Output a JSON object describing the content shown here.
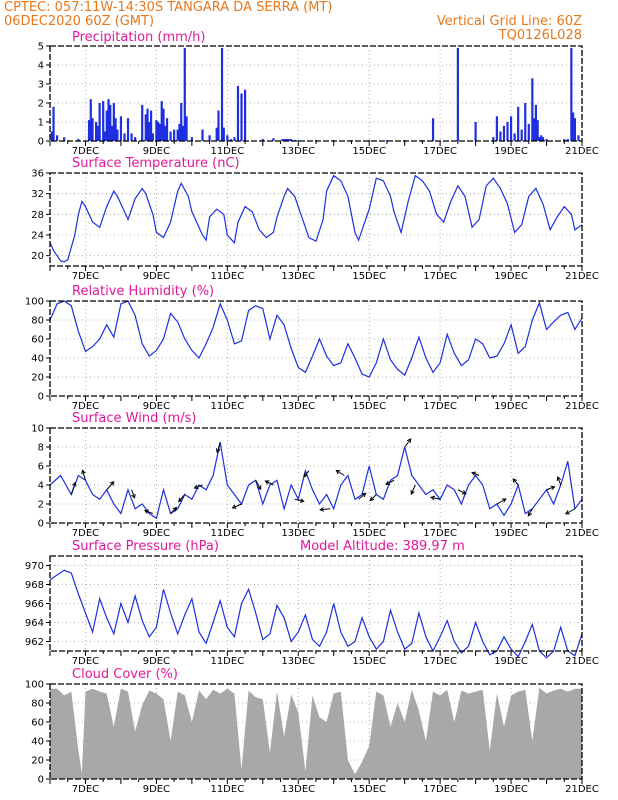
{
  "header": {
    "line1_left": "CPTEC:   057:11W-14:30S   TANGARA DA SERRA (MT)",
    "line2_left": "06DEC2020 60Z (GMT)",
    "line2_right": "Vertical Grid Line: 60Z",
    "line3_right": "TQ0126L028"
  },
  "colors": {
    "header": "#e8781a",
    "title": "#e0189a",
    "series": "#1d2fe0",
    "cloud": "#a8a8a8",
    "arrow": "#000000",
    "grid": "#9a9a9a"
  },
  "chart_data": [
    {
      "type": "bar",
      "title": "Precipitation (mm/h)",
      "ylim": [
        0,
        5
      ],
      "yticks": [
        "0",
        "1",
        "2",
        "3",
        "4",
        "5"
      ],
      "xlim": [
        0,
        15
      ],
      "xtick_positions": [
        1,
        3,
        5,
        7,
        9,
        11,
        13,
        15
      ],
      "xtick_labels": [
        "7DEC",
        "9DEC",
        "11DEC",
        "13DEC",
        "15DEC",
        "17DEC",
        "19DEC",
        "21DEC"
      ],
      "grid": "dotted",
      "x": [
        0.05,
        0.1,
        0.2,
        0.4,
        0.8,
        1.1,
        1.15,
        1.2,
        1.3,
        1.35,
        1.4,
        1.5,
        1.55,
        1.6,
        1.65,
        1.7,
        1.75,
        1.8,
        1.85,
        1.9,
        2.0,
        2.1,
        2.2,
        2.3,
        2.4,
        2.6,
        2.7,
        2.75,
        2.8,
        2.85,
        2.9,
        3.0,
        3.05,
        3.1,
        3.15,
        3.2,
        3.25,
        3.3,
        3.4,
        3.5,
        3.6,
        3.65,
        3.7,
        3.75,
        3.8,
        3.85,
        4.0,
        4.3,
        4.5,
        4.7,
        4.75,
        4.85,
        4.9,
        5.0,
        5.1,
        5.2,
        5.3,
        5.4,
        5.5,
        6.0,
        6.3,
        6.55,
        6.6,
        6.65,
        6.7,
        6.75,
        6.8,
        6.9,
        7.0,
        7.5,
        8.0,
        8.5,
        9.0,
        9.5,
        10.0,
        10.5,
        10.8,
        11.5,
        12.0,
        12.5,
        12.6,
        12.7,
        12.8,
        12.9,
        13.0,
        13.1,
        13.2,
        13.3,
        13.4,
        13.5,
        13.6,
        13.65,
        13.7,
        13.75,
        13.8,
        13.85,
        13.9,
        14.0,
        14.5,
        14.6,
        14.7,
        14.75,
        14.8,
        14.9
      ],
      "values": [
        0.5,
        1.8,
        0.3,
        0.2,
        0.1,
        1.1,
        2.2,
        1.2,
        1.0,
        0.8,
        2.0,
        2.1,
        0.5,
        1.6,
        2.2,
        1.9,
        0.8,
        2.0,
        1.2,
        0.6,
        1.3,
        0.4,
        1.2,
        0.4,
        0.2,
        1.9,
        1.4,
        1.7,
        1.0,
        1.6,
        0.4,
        1.1,
        1.0,
        0.9,
        2.1,
        1.7,
        0.8,
        1.2,
        0.5,
        0.6,
        0.6,
        0.9,
        2.0,
        0.8,
        4.9,
        1.3,
        0.2,
        0.6,
        0.3,
        0.7,
        1.6,
        4.9,
        0.7,
        0.3,
        0.1,
        0.2,
        2.9,
        2.5,
        2.7,
        0.1,
        0.15,
        0.1,
        0.1,
        0.1,
        0.1,
        0.1,
        0.1,
        0.05,
        0.05,
        0.05,
        0.05,
        0.05,
        0.05,
        0.05,
        0.05,
        0.05,
        1.2,
        4.9,
        1.0,
        0.2,
        1.3,
        0.5,
        0.8,
        1.0,
        1.3,
        0.4,
        1.8,
        0.6,
        2.0,
        0.9,
        3.3,
        1.2,
        1.9,
        1.1,
        0.2,
        0.3,
        0.2,
        0.1,
        0.1,
        0.1,
        4.9,
        1.5,
        1.2,
        0.3
      ]
    },
    {
      "type": "line",
      "title": "Surface Temperature (nC)",
      "ylim": [
        18,
        36
      ],
      "yticks": [
        "20",
        "24",
        "28",
        "32",
        "36"
      ],
      "ytick_values": [
        20,
        24,
        28,
        32,
        36
      ],
      "xlim": [
        0,
        15
      ],
      "xtick_positions": [
        1,
        3,
        5,
        7,
        9,
        11,
        13,
        15
      ],
      "xtick_labels": [
        "7DEC",
        "9DEC",
        "11DEC",
        "13DEC",
        "15DEC",
        "17DEC",
        "19DEC",
        "21DEC"
      ],
      "grid": "dotted",
      "x": [
        0,
        0.1,
        0.2,
        0.3,
        0.4,
        0.5,
        0.7,
        0.8,
        0.9,
        1.0,
        1.2,
        1.4,
        1.6,
        1.8,
        1.9,
        2.1,
        2.2,
        2.4,
        2.6,
        2.7,
        2.8,
        2.9,
        3.0,
        3.2,
        3.4,
        3.6,
        3.7,
        3.9,
        4.0,
        4.3,
        4.4,
        4.5,
        4.7,
        4.9,
        5.0,
        5.2,
        5.3,
        5.5,
        5.7,
        5.9,
        6.1,
        6.3,
        6.4,
        6.6,
        6.7,
        6.9,
        7.1,
        7.3,
        7.5,
        7.7,
        7.8,
        8.0,
        8.2,
        8.4,
        8.6,
        8.7,
        9.0,
        9.2,
        9.4,
        9.6,
        9.7,
        9.9,
        10.1,
        10.3,
        10.5,
        10.7,
        10.9,
        11.1,
        11.3,
        11.5,
        11.7,
        11.9,
        12.1,
        12.3,
        12.5,
        12.7,
        12.9,
        13.1,
        13.3,
        13.5,
        13.7,
        13.9,
        14.1,
        14.3,
        14.5,
        14.7,
        14.8,
        15.0
      ],
      "values": [
        22.5,
        21.0,
        20.0,
        19.0,
        18.8,
        19.2,
        24.0,
        28.0,
        30.5,
        29.5,
        26.5,
        25.5,
        29.5,
        32.5,
        31.5,
        28.5,
        27.0,
        31.0,
        33.0,
        32.0,
        30.0,
        28.0,
        24.5,
        23.5,
        26.5,
        32.5,
        34.0,
        31.5,
        28.5,
        24.0,
        23.0,
        27.5,
        29.0,
        28.0,
        24.0,
        22.5,
        26.5,
        29.5,
        28.5,
        25.0,
        23.5,
        24.5,
        27.5,
        31.5,
        33.0,
        31.5,
        27.5,
        23.5,
        22.8,
        27.0,
        32.5,
        35.5,
        34.5,
        31.5,
        24.5,
        23.0,
        29.0,
        35.0,
        34.5,
        31.5,
        28.5,
        24.5,
        30.5,
        35.5,
        34.5,
        32.5,
        28.0,
        26.5,
        30.5,
        33.5,
        31.5,
        25.5,
        27.0,
        33.5,
        35.0,
        33.0,
        30.0,
        24.5,
        26.0,
        31.5,
        33.0,
        30.0,
        25.0,
        27.5,
        29.5,
        28.0,
        25.0,
        26.0
      ]
    },
    {
      "type": "line",
      "title": "Relative Humidity (%)",
      "ylim": [
        0,
        100
      ],
      "yticks": [
        "0",
        "20",
        "40",
        "60",
        "80",
        "100"
      ],
      "xlim": [
        0,
        15
      ],
      "xtick_positions": [
        1,
        3,
        5,
        7,
        9,
        11,
        13,
        15
      ],
      "xtick_labels": [
        "7DEC",
        "9DEC",
        "11DEC",
        "13DEC",
        "15DEC",
        "17DEC",
        "19DEC",
        "21DEC"
      ],
      "grid": "dotted",
      "x": [
        0,
        0.2,
        0.4,
        0.6,
        0.8,
        1.0,
        1.2,
        1.4,
        1.6,
        1.8,
        2.0,
        2.2,
        2.4,
        2.6,
        2.8,
        3.0,
        3.2,
        3.4,
        3.6,
        3.8,
        4.0,
        4.2,
        4.4,
        4.6,
        4.8,
        5.0,
        5.2,
        5.4,
        5.6,
        5.8,
        6.0,
        6.2,
        6.4,
        6.6,
        6.8,
        7.0,
        7.2,
        7.4,
        7.6,
        7.8,
        8.0,
        8.2,
        8.4,
        8.6,
        8.8,
        9.0,
        9.2,
        9.4,
        9.6,
        9.8,
        10.0,
        10.2,
        10.4,
        10.6,
        10.8,
        11.0,
        11.2,
        11.4,
        11.6,
        11.8,
        12.0,
        12.2,
        12.4,
        12.6,
        12.8,
        13.0,
        13.2,
        13.4,
        13.6,
        13.8,
        14.0,
        14.2,
        14.4,
        14.6,
        14.8,
        15.0
      ],
      "values": [
        80,
        97,
        100,
        95,
        68,
        47,
        52,
        60,
        75,
        62,
        97,
        100,
        85,
        55,
        42,
        48,
        60,
        87,
        78,
        60,
        48,
        40,
        55,
        72,
        97,
        80,
        55,
        58,
        90,
        95,
        92,
        60,
        85,
        75,
        50,
        30,
        25,
        42,
        60,
        42,
        32,
        35,
        55,
        40,
        23,
        20,
        35,
        60,
        38,
        28,
        22,
        40,
        62,
        40,
        25,
        35,
        65,
        45,
        32,
        38,
        60,
        55,
        40,
        42,
        55,
        75,
        45,
        52,
        80,
        98,
        70,
        78,
        85,
        88,
        70,
        82
      ]
    },
    {
      "type": "line",
      "title": "Surface Wind (m/s)",
      "ylim": [
        0,
        10
      ],
      "yticks": [
        "0",
        "2",
        "4",
        "6",
        "8",
        "10"
      ],
      "xlim": [
        0,
        15
      ],
      "xtick_positions": [
        1,
        3,
        5,
        7,
        9,
        11,
        13,
        15
      ],
      "xtick_labels": [
        "7DEC",
        "9DEC",
        "11DEC",
        "13DEC",
        "15DEC",
        "17DEC",
        "19DEC",
        "21DEC"
      ],
      "grid": "dotted",
      "x": [
        0,
        0.3,
        0.6,
        0.8,
        1.0,
        1.2,
        1.4,
        1.6,
        1.8,
        2.0,
        2.2,
        2.4,
        2.6,
        2.8,
        3.0,
        3.2,
        3.4,
        3.6,
        3.8,
        4.0,
        4.2,
        4.4,
        4.6,
        4.8,
        5.0,
        5.2,
        5.4,
        5.6,
        5.8,
        6.0,
        6.2,
        6.4,
        6.6,
        6.8,
        7.0,
        7.2,
        7.4,
        7.6,
        7.8,
        8.0,
        8.2,
        8.4,
        8.6,
        8.8,
        9.0,
        9.2,
        9.4,
        9.6,
        9.8,
        10.0,
        10.2,
        10.4,
        10.6,
        10.8,
        11.0,
        11.2,
        11.4,
        11.6,
        11.8,
        12.0,
        12.2,
        12.4,
        12.6,
        12.8,
        13.0,
        13.2,
        13.4,
        13.6,
        13.8,
        14.0,
        14.2,
        14.4,
        14.6,
        14.8,
        15.0
      ],
      "values": [
        4,
        5,
        3,
        5,
        4.5,
        3,
        2.5,
        3.5,
        2,
        1,
        3.5,
        1.5,
        2,
        1,
        0.5,
        3.5,
        1,
        1.5,
        3,
        2.5,
        4,
        3.5,
        5,
        8.5,
        4,
        3,
        2,
        4,
        4.5,
        2,
        4,
        4.5,
        1.5,
        4,
        2.5,
        5.5,
        3.5,
        2,
        3,
        1.5,
        4,
        5,
        2.5,
        3,
        6,
        3,
        2.5,
        4.5,
        5,
        8,
        5,
        4,
        3,
        3.5,
        2.5,
        4,
        3.5,
        2,
        4,
        5,
        4,
        1.5,
        2,
        0.8,
        2,
        4,
        1,
        1.5,
        2.5,
        3.5,
        2,
        4,
        6.5,
        1.5,
        2.5
      ],
      "arrows": [
        {
          "x": 0.6,
          "dx": 4,
          "dy": -12
        },
        {
          "x": 1.0,
          "dx": -3,
          "dy": -10
        },
        {
          "x": 1.6,
          "dx": 7,
          "dy": -8
        },
        {
          "x": 2.3,
          "dx": 3,
          "dy": 8
        },
        {
          "x": 2.9,
          "dx": -8,
          "dy": -3
        },
        {
          "x": 3.4,
          "dx": 6,
          "dy": -6
        },
        {
          "x": 3.8,
          "dx": -6,
          "dy": 7
        },
        {
          "x": 4.3,
          "dx": -8,
          "dy": 3
        },
        {
          "x": 4.8,
          "dx": -3,
          "dy": 10
        },
        {
          "x": 5.4,
          "dx": -9,
          "dy": 4
        },
        {
          "x": 5.8,
          "dx": 5,
          "dy": 9
        },
        {
          "x": 6.3,
          "dx": -8,
          "dy": -4
        },
        {
          "x": 6.9,
          "dx": 9,
          "dy": 2
        },
        {
          "x": 7.3,
          "dx": -5,
          "dy": 6
        },
        {
          "x": 7.9,
          "dx": -10,
          "dy": 1
        },
        {
          "x": 8.3,
          "dx": -8,
          "dy": -5
        },
        {
          "x": 8.7,
          "dx": 7,
          "dy": -6
        },
        {
          "x": 9.2,
          "dx": -6,
          "dy": 6
        },
        {
          "x": 9.7,
          "dx": -8,
          "dy": 4
        },
        {
          "x": 10.0,
          "dx": 6,
          "dy": -8
        },
        {
          "x": 10.3,
          "dx": -4,
          "dy": 9
        },
        {
          "x": 11.0,
          "dx": -9,
          "dy": -2
        },
        {
          "x": 11.5,
          "dx": 8,
          "dy": 4
        },
        {
          "x": 12.1,
          "dx": -7,
          "dy": -3
        },
        {
          "x": 12.6,
          "dx": 9,
          "dy": -5
        },
        {
          "x": 13.2,
          "dx": -5,
          "dy": -6
        },
        {
          "x": 13.6,
          "dx": -4,
          "dy": 7
        },
        {
          "x": 14.0,
          "dx": 8,
          "dy": -3
        },
        {
          "x": 14.4,
          "dx": -3,
          "dy": -8
        },
        {
          "x": 14.8,
          "dx": -9,
          "dy": 5
        }
      ]
    },
    {
      "type": "line",
      "title": "Surface Pressure (hPa)",
      "annotation": "Model Altitude: 389.97 m",
      "ylim": [
        961,
        971
      ],
      "yticks": [
        "962",
        "964",
        "966",
        "968",
        "970"
      ],
      "ytick_values": [
        962,
        964,
        966,
        968,
        970
      ],
      "xlim": [
        0,
        15
      ],
      "xtick_positions": [
        1,
        3,
        5,
        7,
        9,
        11,
        13,
        15
      ],
      "xtick_labels": [
        "7DEC",
        "9DEC",
        "11DEC",
        "13DEC",
        "15DEC",
        "17DEC",
        "19DEC",
        "21DEC"
      ],
      "grid": "dotted",
      "x": [
        0,
        0.2,
        0.4,
        0.6,
        0.8,
        1.0,
        1.2,
        1.4,
        1.6,
        1.8,
        2.0,
        2.2,
        2.4,
        2.6,
        2.8,
        3.0,
        3.2,
        3.4,
        3.6,
        3.8,
        4.0,
        4.2,
        4.4,
        4.6,
        4.8,
        5.0,
        5.2,
        5.4,
        5.6,
        5.8,
        6.0,
        6.2,
        6.4,
        6.6,
        6.8,
        7.0,
        7.2,
        7.4,
        7.6,
        7.8,
        8.0,
        8.2,
        8.4,
        8.6,
        8.8,
        9.0,
        9.2,
        9.4,
        9.6,
        9.8,
        10.0,
        10.2,
        10.4,
        10.6,
        10.8,
        11.0,
        11.2,
        11.4,
        11.6,
        11.8,
        12.0,
        12.2,
        12.4,
        12.6,
        12.8,
        13.0,
        13.2,
        13.4,
        13.6,
        13.8,
        14.0,
        14.2,
        14.4,
        14.6,
        14.8,
        15.0
      ],
      "values": [
        968.5,
        969.0,
        969.5,
        969.2,
        967.0,
        965.0,
        963.0,
        966.5,
        964.5,
        962.8,
        966.0,
        964.0,
        966.8,
        964.2,
        962.5,
        963.5,
        967.5,
        965.0,
        962.8,
        964.8,
        966.5,
        963.0,
        961.8,
        964.0,
        966.3,
        963.5,
        962.5,
        966.0,
        967.5,
        965.0,
        962.2,
        962.8,
        965.8,
        964.5,
        962.0,
        963.0,
        964.8,
        962.2,
        961.5,
        963.0,
        966.0,
        963.0,
        961.5,
        962.0,
        964.5,
        962.5,
        961.2,
        962.0,
        965.3,
        963.0,
        961.2,
        961.8,
        965.0,
        962.5,
        961.0,
        962.5,
        964.2,
        962.0,
        960.8,
        961.5,
        964.0,
        962.0,
        960.6,
        961.0,
        962.5,
        961.2,
        960.4,
        962.0,
        963.8,
        961.0,
        960.3,
        961.0,
        963.5,
        961.0,
        960.5,
        962.8
      ]
    },
    {
      "type": "area",
      "title": "Cloud Cover (%)",
      "ylim": [
        0,
        100
      ],
      "yticks": [
        "0",
        "20",
        "40",
        "60",
        "80",
        "100"
      ],
      "xlim": [
        0,
        15
      ],
      "xtick_positions": [
        1,
        3,
        5,
        7,
        9,
        11,
        13,
        15
      ],
      "xtick_labels": [
        "7DEC",
        "9DEC",
        "11DEC",
        "13DEC",
        "15DEC",
        "17DEC",
        "19DEC",
        "21DEC"
      ],
      "grid": "dotted",
      "x": [
        0,
        0.2,
        0.4,
        0.6,
        0.8,
        0.9,
        1.0,
        1.2,
        1.4,
        1.6,
        1.8,
        2.0,
        2.2,
        2.4,
        2.6,
        2.8,
        3.0,
        3.2,
        3.4,
        3.6,
        3.8,
        4.0,
        4.2,
        4.4,
        4.6,
        4.8,
        5.0,
        5.2,
        5.4,
        5.6,
        5.8,
        6.0,
        6.2,
        6.4,
        6.6,
        6.8,
        7.0,
        7.2,
        7.4,
        7.6,
        7.8,
        8.0,
        8.2,
        8.4,
        8.6,
        8.8,
        9.0,
        9.2,
        9.4,
        9.6,
        9.8,
        10.0,
        10.2,
        10.4,
        10.6,
        10.8,
        11.0,
        11.2,
        11.4,
        11.6,
        11.8,
        12.0,
        12.2,
        12.4,
        12.6,
        12.8,
        13.0,
        13.2,
        13.4,
        13.6,
        13.8,
        14.0,
        14.2,
        14.4,
        14.6,
        14.8,
        15.0
      ],
      "values": [
        95,
        95,
        88,
        92,
        30,
        6,
        92,
        95,
        92,
        90,
        55,
        95,
        92,
        50,
        78,
        93,
        90,
        84,
        40,
        92,
        88,
        60,
        93,
        84,
        94,
        90,
        95,
        90,
        10,
        93,
        86,
        84,
        28,
        92,
        45,
        89,
        70,
        8,
        88,
        65,
        60,
        90,
        92,
        20,
        5,
        18,
        35,
        92,
        88,
        55,
        80,
        60,
        94,
        72,
        40,
        92,
        88,
        94,
        60,
        93,
        90,
        92,
        94,
        30,
        90,
        55,
        88,
        92,
        94,
        40,
        96,
        90,
        93,
        95,
        92,
        95,
        95
      ]
    }
  ]
}
